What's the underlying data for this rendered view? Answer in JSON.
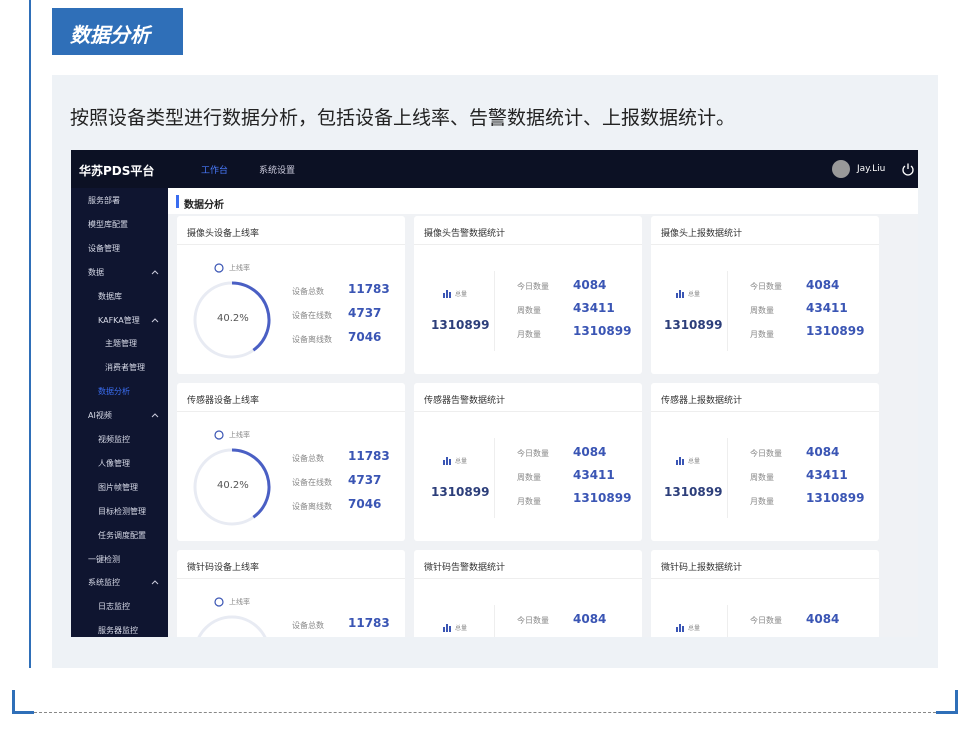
{
  "header": {
    "title": "数据分析"
  },
  "description": "按照设备类型进行数据分析，包括设备上线率、告警数据统计、上报数据统计。",
  "app": {
    "brand": "华苏PDS平台",
    "nav": [
      "工作台",
      "系统设置"
    ],
    "user": "Jay.Liu",
    "sidebar": [
      {
        "label": "服务部署",
        "level": 1
      },
      {
        "label": "模型库配置",
        "level": 1
      },
      {
        "label": "设备管理",
        "level": 1
      },
      {
        "label": "数据",
        "level": 1,
        "expanded": true
      },
      {
        "label": "数据库",
        "level": 2
      },
      {
        "label": "KAFKA管理",
        "level": 2,
        "expanded": true
      },
      {
        "label": "主题管理",
        "level": 3
      },
      {
        "label": "消费者管理",
        "level": 3
      },
      {
        "label": "数据分析",
        "level": 2,
        "active": true
      },
      {
        "label": "AI视频",
        "level": 1,
        "expanded": true
      },
      {
        "label": "视频监控",
        "level": 2
      },
      {
        "label": "人像管理",
        "level": 2
      },
      {
        "label": "图片帧管理",
        "level": 2
      },
      {
        "label": "目标检测管理",
        "level": 2
      },
      {
        "label": "任务调度配置",
        "level": 2
      },
      {
        "label": "一键检测",
        "level": 1
      },
      {
        "label": "系统监控",
        "level": 1,
        "expanded": true
      },
      {
        "label": "日志监控",
        "level": 2
      },
      {
        "label": "服务器监控",
        "level": 2
      }
    ],
    "page_title": "数据分析",
    "rows": [
      [
        {
          "kind": "online",
          "title": "摄像头设备上线率",
          "legend": "上线率",
          "percent": "40.2%",
          "stats": [
            {
              "label": "设备总数",
              "value": "11783"
            },
            {
              "label": "设备在线数",
              "value": "4737"
            },
            {
              "label": "设备离线数",
              "value": "7046"
            }
          ]
        },
        {
          "kind": "total",
          "title": "摄像头告警数据统计",
          "total_label": "总量",
          "total": "1310899",
          "stats": [
            {
              "label": "今日数量",
              "value": "4084"
            },
            {
              "label": "周数量",
              "value": "43411"
            },
            {
              "label": "月数量",
              "value": "1310899"
            }
          ]
        },
        {
          "kind": "total",
          "title": "摄像头上报数据统计",
          "total_label": "总量",
          "total": "1310899",
          "stats": [
            {
              "label": "今日数量",
              "value": "4084"
            },
            {
              "label": "周数量",
              "value": "43411"
            },
            {
              "label": "月数量",
              "value": "1310899"
            }
          ]
        }
      ],
      [
        {
          "kind": "online",
          "title": "传感器设备上线率",
          "legend": "上线率",
          "percent": "40.2%",
          "stats": [
            {
              "label": "设备总数",
              "value": "11783"
            },
            {
              "label": "设备在线数",
              "value": "4737"
            },
            {
              "label": "设备离线数",
              "value": "7046"
            }
          ]
        },
        {
          "kind": "total",
          "title": "传感器告警数据统计",
          "total_label": "总量",
          "total": "1310899",
          "stats": [
            {
              "label": "今日数量",
              "value": "4084"
            },
            {
              "label": "周数量",
              "value": "43411"
            },
            {
              "label": "月数量",
              "value": "1310899"
            }
          ]
        },
        {
          "kind": "total",
          "title": "传感器上报数据统计",
          "total_label": "总量",
          "total": "1310899",
          "stats": [
            {
              "label": "今日数量",
              "value": "4084"
            },
            {
              "label": "周数量",
              "value": "43411"
            },
            {
              "label": "月数量",
              "value": "1310899"
            }
          ]
        }
      ],
      [
        {
          "kind": "online",
          "title": "微针码设备上线率",
          "legend": "上线率",
          "stats": [
            {
              "label": "设备总数",
              "value": "11783"
            }
          ]
        },
        {
          "kind": "total",
          "title": "微针码告警数据统计",
          "total_label": "总量",
          "stats": [
            {
              "label": "今日数量",
              "value": "4084"
            }
          ]
        },
        {
          "kind": "total",
          "title": "微针码上报数据统计",
          "total_label": "总量",
          "stats": [
            {
              "label": "今日数量",
              "value": "4084"
            }
          ]
        }
      ]
    ]
  }
}
